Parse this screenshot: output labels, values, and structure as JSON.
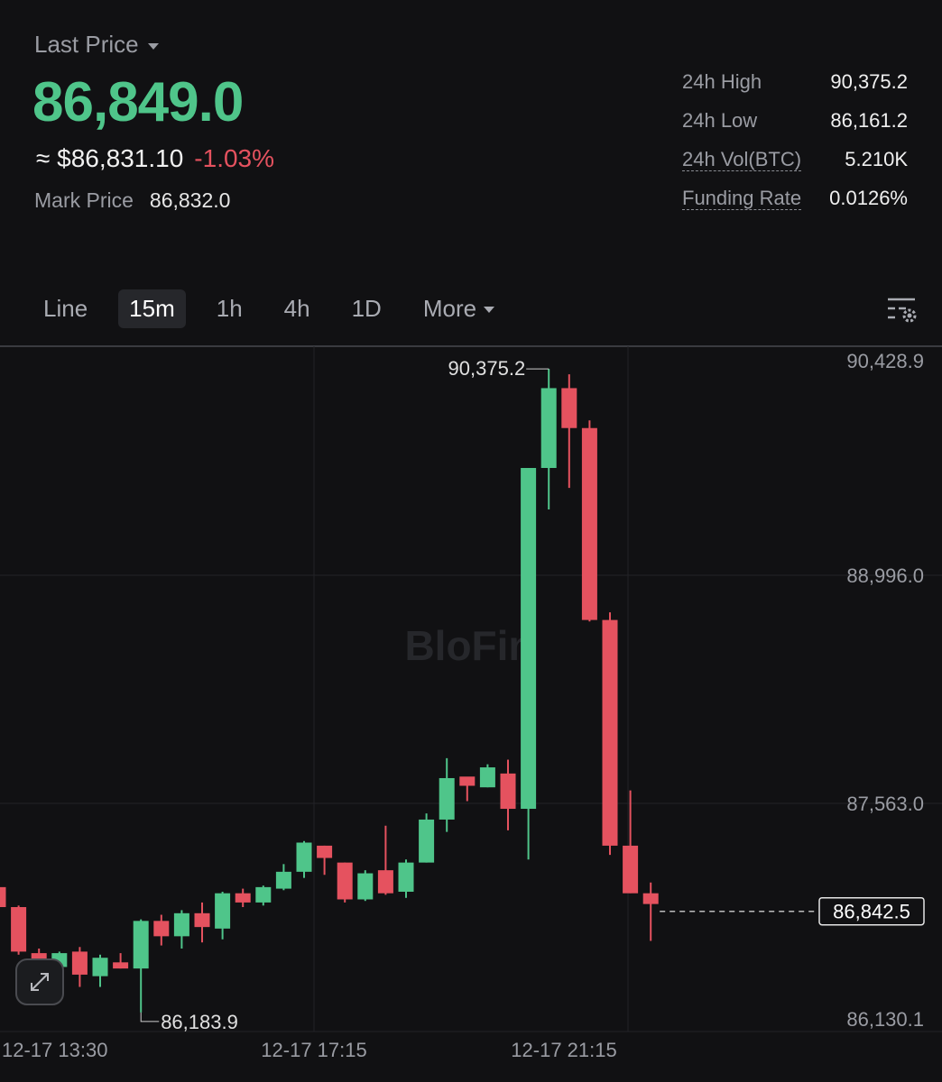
{
  "header": {
    "last_price_label": "Last Price",
    "last_price": "86,849.0",
    "usd_value": "≈ $86,831.10",
    "change_pct": "-1.03%",
    "mark_price_label": "Mark Price",
    "mark_price": "86,832.0"
  },
  "stats": [
    {
      "label": "24h High",
      "value": "90,375.2"
    },
    {
      "label": "24h Low",
      "value": "86,161.2"
    },
    {
      "label": "24h Vol(BTC)",
      "value": "5.210K"
    },
    {
      "label": "Funding Rate",
      "value": "0.0126%"
    }
  ],
  "tabs": [
    "Line",
    "15m",
    "1h",
    "4h",
    "1D",
    "More"
  ],
  "active_tab": "15m",
  "colors": {
    "up": "#4fc58a",
    "down": "#e5525f",
    "background": "#111113",
    "grid": "#25262a"
  },
  "watermark": "BloFin",
  "icons": {
    "settings": "chart-settings-icon",
    "expand": "expand-icon"
  },
  "chart_data": {
    "type": "candlestick",
    "interval": "15m",
    "y_axis_labels": [
      "90,428.9",
      "88,996.0",
      "87,563.0",
      "86,130.1"
    ],
    "ylim": [
      86130.1,
      90428.9
    ],
    "x_axis_labels": [
      "12-17 13:30",
      "12-17 17:15",
      "12-17 21:15"
    ],
    "current_price_label": "86,842.5",
    "current_price": 86842.5,
    "max_label": "90,375.2",
    "min_label": "86,183.9",
    "candles": [
      [
        87000,
        87050,
        86820,
        86870
      ],
      [
        86870,
        86880,
        86560,
        86580
      ],
      [
        86570,
        86600,
        86470,
        86520
      ],
      [
        86480,
        86580,
        86420,
        86570
      ],
      [
        86580,
        86610,
        86350,
        86430
      ],
      [
        86420,
        86560,
        86350,
        86540
      ],
      [
        86510,
        86570,
        86470,
        86470
      ],
      [
        86470,
        86790,
        86183.9,
        86780
      ],
      [
        86780,
        86820,
        86620,
        86680
      ],
      [
        86680,
        86850,
        86600,
        86830
      ],
      [
        86830,
        86900,
        86640,
        86740
      ],
      [
        86730,
        86970,
        86660,
        86960
      ],
      [
        86960,
        86990,
        86870,
        86900
      ],
      [
        86900,
        87010,
        86880,
        87000
      ],
      [
        86990,
        87150,
        86980,
        87100
      ],
      [
        87100,
        87300,
        87060,
        87290
      ],
      [
        87270,
        87270,
        87080,
        87190
      ],
      [
        87160,
        87160,
        86900,
        86920
      ],
      [
        86920,
        87110,
        86910,
        87090
      ],
      [
        87110,
        87400,
        86950,
        86960
      ],
      [
        86970,
        87180,
        86930,
        87160
      ],
      [
        87160,
        87480,
        87160,
        87440
      ],
      [
        87440,
        87840,
        87360,
        87710
      ],
      [
        87720,
        87710,
        87560,
        87660
      ],
      [
        87650,
        87800,
        87650,
        87780
      ],
      [
        87740,
        87830,
        87370,
        87510
      ],
      [
        87510,
        89730,
        87180,
        89730
      ],
      [
        89730,
        90375.2,
        89460,
        90250
      ],
      [
        90250,
        90340,
        89600,
        89990
      ],
      [
        89990,
        90040,
        88730,
        88740
      ],
      [
        88740,
        88790,
        87210,
        87270
      ],
      [
        87270,
        87630,
        86960,
        86960
      ],
      [
        86960,
        87030,
        86650,
        86890
      ]
    ]
  }
}
